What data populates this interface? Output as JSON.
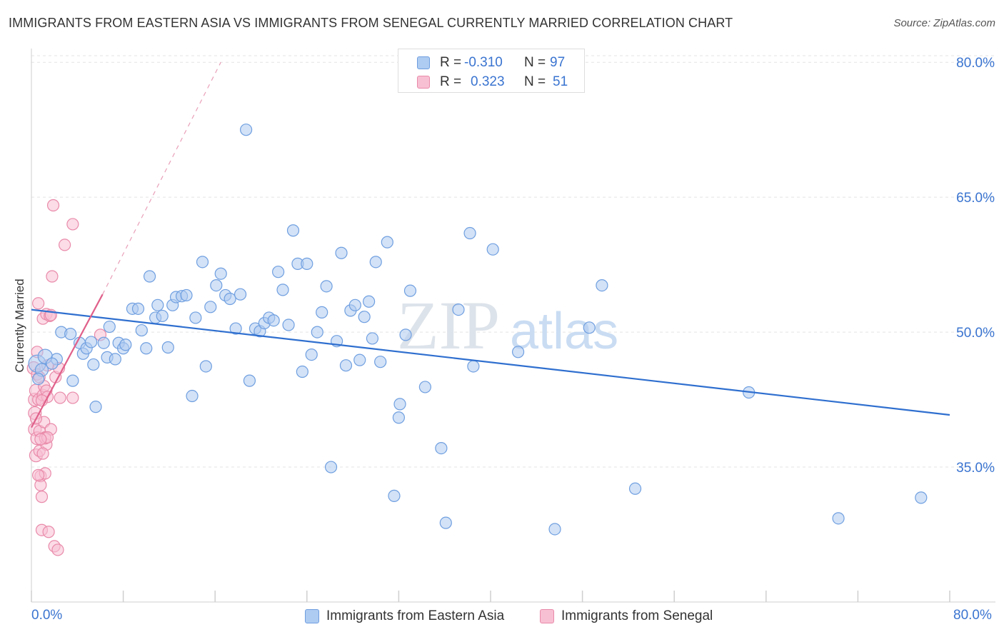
{
  "title": "IMMIGRANTS FROM EASTERN ASIA VS IMMIGRANTS FROM SENEGAL CURRENTLY MARRIED CORRELATION CHART",
  "source": "Source: ZipAtlas.com",
  "watermark": {
    "zip": "ZIP",
    "atlas": "atlas"
  },
  "legend_top": {
    "rows": [
      {
        "r_label": "R =",
        "r_value": "-0.310",
        "n_label": "N =",
        "n_value": "97",
        "color": "#aecbf1",
        "stroke": "#6f9fe0"
      },
      {
        "r_label": "R =",
        "r_value": "0.323",
        "n_label": "N =",
        "n_value": "51",
        "color": "#f8c0d3",
        "stroke": "#e98aa9"
      }
    ]
  },
  "legend_bottom": {
    "items": [
      {
        "label": "Immigrants from Eastern Asia",
        "color": "#aecbf1",
        "stroke": "#6f9fe0"
      },
      {
        "label": "Immigrants from Senegal",
        "color": "#f8c0d3",
        "stroke": "#e98aa9"
      }
    ]
  },
  "chart_data": {
    "type": "scatter",
    "xlabel": "",
    "ylabel": "Currently Married",
    "xlim": [
      0,
      80
    ],
    "ylim": [
      20,
      82
    ],
    "x_tick_labels": [
      "0.0%",
      "80.0%"
    ],
    "y_ticks": [
      35,
      50,
      65,
      80
    ],
    "y_tick_labels": [
      "35.0%",
      "50.0%",
      "65.0%",
      "80.0%"
    ],
    "grid": true,
    "legend_placement": "top-center",
    "series": [
      {
        "name": "Immigrants from Eastern Asia",
        "color": "#6f9fe0",
        "fill": "#aecbf1",
        "points": [
          [
            0.5,
            46.5,
            11
          ],
          [
            1.2,
            47.3,
            9
          ],
          [
            0.9,
            45.8,
            8
          ],
          [
            2.2,
            47.0,
            7
          ],
          [
            1.8,
            46.5,
            7
          ],
          [
            0.6,
            44.8,
            7
          ],
          [
            2.6,
            50.0,
            7
          ],
          [
            3.4,
            49.8,
            7
          ],
          [
            3.6,
            44.6,
            7
          ],
          [
            4.2,
            48.8,
            7
          ],
          [
            4.5,
            47.6,
            7
          ],
          [
            4.8,
            48.2,
            7
          ],
          [
            5.2,
            48.9,
            7
          ],
          [
            5.4,
            46.4,
            7
          ],
          [
            5.6,
            41.7,
            7
          ],
          [
            6.3,
            48.8,
            7
          ],
          [
            6.6,
            47.2,
            7
          ],
          [
            6.8,
            50.6,
            7
          ],
          [
            7.3,
            47.0,
            7
          ],
          [
            7.6,
            48.8,
            7
          ],
          [
            8.0,
            48.2,
            7
          ],
          [
            8.2,
            48.6,
            7
          ],
          [
            8.8,
            52.6,
            7
          ],
          [
            9.3,
            52.6,
            7
          ],
          [
            9.6,
            50.2,
            7
          ],
          [
            10.0,
            48.2,
            7
          ],
          [
            10.3,
            56.2,
            7
          ],
          [
            10.8,
            51.6,
            7
          ],
          [
            11.0,
            53.0,
            7
          ],
          [
            11.4,
            51.8,
            7
          ],
          [
            11.9,
            48.3,
            7
          ],
          [
            12.3,
            53.0,
            7
          ],
          [
            12.6,
            53.9,
            7
          ],
          [
            13.1,
            54.0,
            7
          ],
          [
            13.5,
            54.1,
            7
          ],
          [
            14.0,
            42.9,
            7
          ],
          [
            14.3,
            51.6,
            7
          ],
          [
            14.9,
            57.8,
            7
          ],
          [
            15.2,
            46.2,
            7
          ],
          [
            15.6,
            52.8,
            7
          ],
          [
            16.1,
            55.2,
            7
          ],
          [
            16.5,
            56.5,
            7
          ],
          [
            16.9,
            54.1,
            7
          ],
          [
            17.3,
            53.7,
            7
          ],
          [
            17.8,
            50.4,
            7
          ],
          [
            18.2,
            54.2,
            7
          ],
          [
            18.7,
            72.5,
            7
          ],
          [
            19.0,
            44.6,
            7
          ],
          [
            19.5,
            50.4,
            7
          ],
          [
            19.9,
            50.1,
            7
          ],
          [
            20.3,
            51.0,
            7
          ],
          [
            20.7,
            51.6,
            7
          ],
          [
            21.1,
            51.3,
            7
          ],
          [
            21.5,
            56.7,
            7
          ],
          [
            21.9,
            54.7,
            7
          ],
          [
            22.4,
            50.8,
            7
          ],
          [
            22.8,
            61.3,
            7
          ],
          [
            23.2,
            57.6,
            7
          ],
          [
            23.6,
            45.6,
            7
          ],
          [
            24.0,
            57.6,
            7
          ],
          [
            24.4,
            47.5,
            7
          ],
          [
            24.9,
            50.0,
            7
          ],
          [
            25.3,
            52.2,
            7
          ],
          [
            25.7,
            55.1,
            7
          ],
          [
            26.1,
            35.0,
            7
          ],
          [
            26.6,
            49.0,
            7
          ],
          [
            27.0,
            58.8,
            7
          ],
          [
            27.4,
            46.3,
            7
          ],
          [
            27.8,
            52.4,
            7
          ],
          [
            28.2,
            53.0,
            7
          ],
          [
            28.6,
            46.9,
            7
          ],
          [
            29.0,
            51.7,
            7
          ],
          [
            29.4,
            53.4,
            7
          ],
          [
            29.7,
            49.3,
            7
          ],
          [
            30.0,
            57.8,
            7
          ],
          [
            30.4,
            46.7,
            7
          ],
          [
            31.0,
            60.0,
            7
          ],
          [
            31.6,
            31.8,
            7
          ],
          [
            32.1,
            42.0,
            7
          ],
          [
            32.0,
            40.5,
            7
          ],
          [
            32.6,
            49.7,
            7
          ],
          [
            33.0,
            54.6,
            7
          ],
          [
            34.3,
            43.9,
            7
          ],
          [
            35.7,
            37.1,
            7
          ],
          [
            36.1,
            28.8,
            7
          ],
          [
            37.2,
            52.5,
            7
          ],
          [
            38.2,
            61.0,
            7
          ],
          [
            38.5,
            46.2,
            7
          ],
          [
            40.2,
            59.2,
            7
          ],
          [
            42.4,
            47.8,
            7
          ],
          [
            45.6,
            28.1,
            7
          ],
          [
            48.6,
            50.5,
            7
          ],
          [
            49.7,
            55.2,
            7
          ],
          [
            52.6,
            32.6,
            7
          ],
          [
            62.5,
            43.3,
            7
          ],
          [
            70.3,
            29.3,
            7
          ],
          [
            77.5,
            31.6,
            7
          ]
        ],
        "trend": {
          "x": [
            0,
            80
          ],
          "y": [
            52.5,
            40.8
          ]
        }
      },
      {
        "name": "Immigrants from Senegal",
        "color": "#e98aa9",
        "fill": "#f8c0d3",
        "points": [
          [
            0.2,
            46.0,
            8
          ],
          [
            0.3,
            42.5,
            8
          ],
          [
            0.3,
            41.0,
            8
          ],
          [
            0.4,
            43.5,
            8
          ],
          [
            0.3,
            39.2,
            8
          ],
          [
            0.4,
            36.3,
            8
          ],
          [
            0.5,
            38.2,
            8
          ],
          [
            0.5,
            45.3,
            7
          ],
          [
            0.6,
            53.2,
            7
          ],
          [
            0.6,
            42.5,
            7
          ],
          [
            0.7,
            39.0,
            7
          ],
          [
            0.7,
            36.8,
            7
          ],
          [
            0.8,
            34.0,
            7
          ],
          [
            0.8,
            33.0,
            7
          ],
          [
            0.9,
            31.7,
            7
          ],
          [
            0.9,
            28.0,
            7
          ],
          [
            1.0,
            51.5,
            7
          ],
          [
            1.0,
            43.0,
            7
          ],
          [
            1.1,
            44.0,
            7
          ],
          [
            1.1,
            40.0,
            7
          ],
          [
            1.2,
            38.3,
            7
          ],
          [
            1.2,
            34.3,
            7
          ],
          [
            1.3,
            52.0,
            7
          ],
          [
            1.3,
            43.5,
            7
          ],
          [
            1.3,
            37.5,
            7
          ],
          [
            1.4,
            46.3,
            7
          ],
          [
            1.4,
            42.8,
            7
          ],
          [
            1.5,
            27.8,
            7
          ],
          [
            1.6,
            51.8,
            7
          ],
          [
            1.7,
            39.2,
            7
          ],
          [
            1.8,
            56.2,
            7
          ],
          [
            1.9,
            64.1,
            7
          ],
          [
            2.0,
            26.2,
            7
          ],
          [
            2.1,
            45.0,
            7
          ],
          [
            2.3,
            25.8,
            7
          ],
          [
            2.5,
            42.7,
            7
          ],
          [
            2.9,
            59.7,
            7
          ],
          [
            3.6,
            42.7,
            7
          ],
          [
            3.6,
            62.0,
            7
          ],
          [
            1.2,
            38.2,
            7
          ],
          [
            0.9,
            42.4,
            7
          ],
          [
            0.4,
            40.4,
            7
          ],
          [
            0.6,
            34.1,
            7
          ],
          [
            1.4,
            38.3,
            7
          ],
          [
            0.8,
            38.1,
            7
          ],
          [
            2.4,
            46.0,
            7
          ],
          [
            6.0,
            49.7,
            7
          ],
          [
            0.5,
            47.8,
            7
          ],
          [
            0.7,
            45.0,
            7
          ],
          [
            1.0,
            36.5,
            7
          ],
          [
            1.7,
            51.9,
            7
          ]
        ],
        "trend": {
          "x": [
            0,
            6.2
          ],
          "y": [
            39.4,
            54.2
          ]
        },
        "trend_extension": {
          "x": [
            6.2,
            16.5
          ],
          "y": [
            54.2,
            80.0
          ]
        }
      }
    ]
  }
}
